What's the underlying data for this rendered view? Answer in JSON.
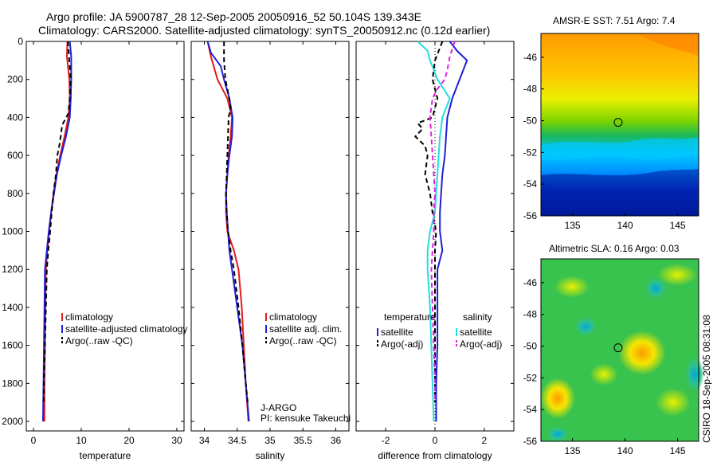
{
  "header": {
    "line1": "Argo profile: JA 5900787_28 12-Sep-2005 20050916_52 50.104S 139.343E",
    "line2": "Climatology: CARS2000. Satellite-adjusted climatology: synTS_20050912.nc (0.12d earlier)"
  },
  "chart_data": [
    {
      "type": "line",
      "panel": "temperature",
      "xlabel": "temperature",
      "xlim": [
        -1.5,
        31.5
      ],
      "xticks": [
        0,
        10,
        20,
        30
      ],
      "ylim": [
        2050,
        0
      ],
      "yticks": [
        0,
        200,
        400,
        600,
        800,
        1000,
        1200,
        1400,
        1600,
        1800,
        2000
      ],
      "series": [
        {
          "name": "climatology",
          "color": "#e41a1c",
          "dash": "",
          "points": [
            [
              7.1,
              0
            ],
            [
              7.0,
              80
            ],
            [
              7.5,
              200
            ],
            [
              7.6,
              300
            ],
            [
              7.3,
              400
            ],
            [
              6.5,
              500
            ],
            [
              5.6,
              600
            ],
            [
              4.8,
              700
            ],
            [
              4.2,
              800
            ],
            [
              3.7,
              900
            ],
            [
              3.3,
              1000
            ],
            [
              2.9,
              1100
            ],
            [
              2.6,
              1200
            ],
            [
              2.5,
              1400
            ],
            [
              2.4,
              1600
            ],
            [
              2.3,
              1800
            ],
            [
              2.3,
              2000
            ]
          ]
        },
        {
          "name": "satellite-adjusted climatology",
          "color": "#1f1fd6",
          "dash": "",
          "points": [
            [
              7.6,
              0
            ],
            [
              7.9,
              80
            ],
            [
              7.9,
              200
            ],
            [
              7.8,
              300
            ],
            [
              7.6,
              400
            ],
            [
              6.8,
              500
            ],
            [
              5.8,
              600
            ],
            [
              4.9,
              700
            ],
            [
              4.3,
              800
            ],
            [
              3.7,
              900
            ],
            [
              3.2,
              1000
            ],
            [
              2.8,
              1100
            ],
            [
              2.4,
              1200
            ],
            [
              2.3,
              1400
            ],
            [
              2.2,
              1600
            ],
            [
              2.1,
              1800
            ],
            [
              2.0,
              2000
            ]
          ]
        },
        {
          "name": "Argo(..raw -QC)",
          "color": "#000000",
          "dash": "6,4",
          "points": [
            [
              7.2,
              0
            ],
            [
              7.5,
              100
            ],
            [
              7.8,
              200
            ],
            [
              7.6,
              300
            ],
            [
              7.3,
              380
            ],
            [
              6.0,
              440
            ],
            [
              5.7,
              500
            ],
            [
              5.4,
              550
            ],
            [
              5.0,
              600
            ],
            [
              4.7,
              700
            ],
            [
              4.2,
              800
            ],
            [
              3.8,
              900
            ],
            [
              3.5,
              1000
            ],
            [
              3.1,
              1100
            ],
            [
              2.8,
              1200
            ],
            [
              2.6,
              1400
            ],
            [
              2.4,
              1600
            ],
            [
              2.2,
              1800
            ],
            [
              2.1,
              1900
            ]
          ]
        }
      ],
      "annotations": []
    },
    {
      "type": "line",
      "panel": "salinity",
      "xlabel": "salinity",
      "xlim": [
        33.8,
        36.2
      ],
      "xticks": [
        34,
        34.5,
        35,
        35.5,
        36
      ],
      "ylim": [
        2050,
        0
      ],
      "yticks": [
        0,
        200,
        400,
        600,
        800,
        1000,
        1200,
        1400,
        1600,
        1800,
        2000
      ],
      "series": [
        {
          "name": "climatology",
          "color": "#e41a1c",
          "dash": "",
          "points": [
            [
              34.05,
              0
            ],
            [
              34.1,
              80
            ],
            [
              34.2,
              200
            ],
            [
              34.35,
              300
            ],
            [
              34.42,
              400
            ],
            [
              34.4,
              500
            ],
            [
              34.37,
              600
            ],
            [
              34.35,
              700
            ],
            [
              34.33,
              800
            ],
            [
              34.33,
              900
            ],
            [
              34.35,
              1000
            ],
            [
              34.45,
              1100
            ],
            [
              34.52,
              1200
            ],
            [
              34.57,
              1400
            ],
            [
              34.6,
              1600
            ],
            [
              34.63,
              1800
            ],
            [
              34.67,
              2000
            ]
          ]
        },
        {
          "name": "satellite adj. clim.",
          "color": "#1f1fd6",
          "dash": "",
          "points": [
            [
              34.05,
              0
            ],
            [
              34.1,
              60
            ],
            [
              34.25,
              130
            ],
            [
              34.3,
              200
            ],
            [
              34.38,
              300
            ],
            [
              34.43,
              400
            ],
            [
              34.42,
              500
            ],
            [
              34.38,
              600
            ],
            [
              34.35,
              700
            ],
            [
              34.33,
              800
            ],
            [
              34.34,
              900
            ],
            [
              34.36,
              1000
            ],
            [
              34.38,
              1100
            ],
            [
              34.42,
              1200
            ],
            [
              34.5,
              1400
            ],
            [
              34.58,
              1600
            ],
            [
              34.63,
              1800
            ],
            [
              34.68,
              2000
            ]
          ]
        },
        {
          "name": "Argo(..raw -QC)",
          "color": "#000000",
          "dash": "6,4",
          "points": [
            [
              34.3,
              0
            ],
            [
              34.3,
              100
            ],
            [
              34.32,
              200
            ],
            [
              34.38,
              300
            ],
            [
              34.4,
              350
            ],
            [
              34.37,
              400
            ],
            [
              34.36,
              500
            ],
            [
              34.35,
              600
            ],
            [
              34.34,
              700
            ],
            [
              34.33,
              800
            ],
            [
              34.34,
              900
            ],
            [
              34.36,
              1000
            ],
            [
              34.4,
              1100
            ],
            [
              34.45,
              1200
            ],
            [
              34.52,
              1400
            ],
            [
              34.58,
              1600
            ],
            [
              34.63,
              1800
            ],
            [
              34.66,
              1900
            ]
          ]
        }
      ],
      "annotations": [
        "J-ARGO",
        "PI: kensuke Takeuchi"
      ]
    },
    {
      "type": "line",
      "panel": "difference",
      "xlabel": "difference from climatology",
      "xlim": [
        -3.2,
        3.2
      ],
      "xticks": [
        -2,
        0,
        2
      ],
      "ylim": [
        2050,
        0
      ],
      "yticks": [
        0,
        200,
        400,
        600,
        800,
        1000,
        1200,
        1400,
        1600,
        1800,
        2000
      ],
      "legend_groups": [
        "temperature",
        "salinity"
      ],
      "series": [
        {
          "name": "satellite",
          "group": "temperature",
          "color": "#1f1fd6",
          "dash": "",
          "points": [
            [
              0.6,
              0
            ],
            [
              0.9,
              50
            ],
            [
              1.3,
              100
            ],
            [
              1.0,
              200
            ],
            [
              0.7,
              300
            ],
            [
              0.5,
              400
            ],
            [
              0.45,
              500
            ],
            [
              0.4,
              600
            ],
            [
              0.3,
              700
            ],
            [
              0.25,
              800
            ],
            [
              0.2,
              900
            ],
            [
              0.2,
              1000
            ],
            [
              0.3,
              1100
            ],
            [
              0.1,
              1200
            ],
            [
              0.1,
              1400
            ],
            [
              0.1,
              1600
            ],
            [
              0.05,
              1800
            ],
            [
              0.05,
              2000
            ]
          ]
        },
        {
          "name": "Argo(-adj)",
          "group": "temperature",
          "color": "#000000",
          "dash": "6,4",
          "points": [
            [
              0.3,
              0
            ],
            [
              0.0,
              100
            ],
            [
              -0.1,
              200
            ],
            [
              0.1,
              300
            ],
            [
              -0.1,
              400
            ],
            [
              -0.7,
              430
            ],
            [
              -0.5,
              460
            ],
            [
              -0.8,
              500
            ],
            [
              -0.4,
              550
            ],
            [
              -0.3,
              600
            ],
            [
              -0.4,
              700
            ],
            [
              -0.2,
              800
            ],
            [
              -0.1,
              900
            ],
            [
              0.05,
              1000
            ],
            [
              0.0,
              1100
            ],
            [
              0.0,
              1200
            ],
            [
              0.0,
              1600
            ],
            [
              0.0,
              1800
            ],
            [
              0.0,
              1900
            ]
          ]
        },
        {
          "name": "satellite",
          "group": "salinity",
          "color": "#22dede",
          "dash": "",
          "points": [
            [
              -0.7,
              0
            ],
            [
              -0.3,
              50
            ],
            [
              -0.2,
              100
            ],
            [
              0.1,
              200
            ],
            [
              0.6,
              300
            ],
            [
              0.3,
              400
            ],
            [
              0.2,
              500
            ],
            [
              0.15,
              600
            ],
            [
              0.1,
              700
            ],
            [
              0.05,
              800
            ],
            [
              0.0,
              900
            ],
            [
              -0.2,
              1000
            ],
            [
              -0.3,
              1100
            ],
            [
              -0.3,
              1200
            ],
            [
              -0.2,
              1400
            ],
            [
              -0.15,
              1600
            ],
            [
              -0.1,
              1800
            ],
            [
              -0.05,
              2000
            ]
          ]
        },
        {
          "name": "Argo(-adj)",
          "group": "salinity",
          "color": "#e020e0",
          "dash": "6,4",
          "points": [
            [
              0.8,
              0
            ],
            [
              0.6,
              80
            ],
            [
              0.5,
              150
            ],
            [
              0.4,
              200
            ],
            [
              0.1,
              250
            ],
            [
              -0.1,
              300
            ],
            [
              -0.2,
              400
            ],
            [
              -0.15,
              500
            ],
            [
              -0.1,
              600
            ],
            [
              -0.05,
              700
            ],
            [
              0.0,
              800
            ],
            [
              -0.05,
              900
            ],
            [
              -0.05,
              1000
            ],
            [
              -0.1,
              1100
            ],
            [
              -0.15,
              1200
            ],
            [
              -0.1,
              1400
            ],
            [
              -0.05,
              1600
            ],
            [
              0.0,
              1800
            ],
            [
              0.0,
              1900
            ]
          ]
        }
      ],
      "annotations": []
    },
    {
      "type": "heatmap",
      "panel": "sst",
      "title": "AMSR-E SST: 7.51 Argo: 7.4",
      "xlim": [
        132,
        147
      ],
      "ylim": [
        -56,
        -44.5
      ],
      "xticks": [
        135,
        140,
        145
      ],
      "yticks": [
        -46,
        -48,
        -50,
        -52,
        -54,
        -56
      ],
      "marker": {
        "lon": 139.343,
        "lat": -50.104
      },
      "annotations": []
    },
    {
      "type": "heatmap",
      "panel": "sla",
      "title": "Altimetric SLA: 0.16 Argo: 0.03",
      "xlim": [
        132,
        147
      ],
      "ylim": [
        -56,
        -44.5
      ],
      "xticks": [
        135,
        140,
        145
      ],
      "yticks": [
        -46,
        -48,
        -50,
        -52,
        -54,
        -56
      ],
      "marker": {
        "lon": 139.343,
        "lat": -50.104
      },
      "annotations": [
        "CSIRO 18-Sep-2005 08:31:08"
      ]
    }
  ]
}
